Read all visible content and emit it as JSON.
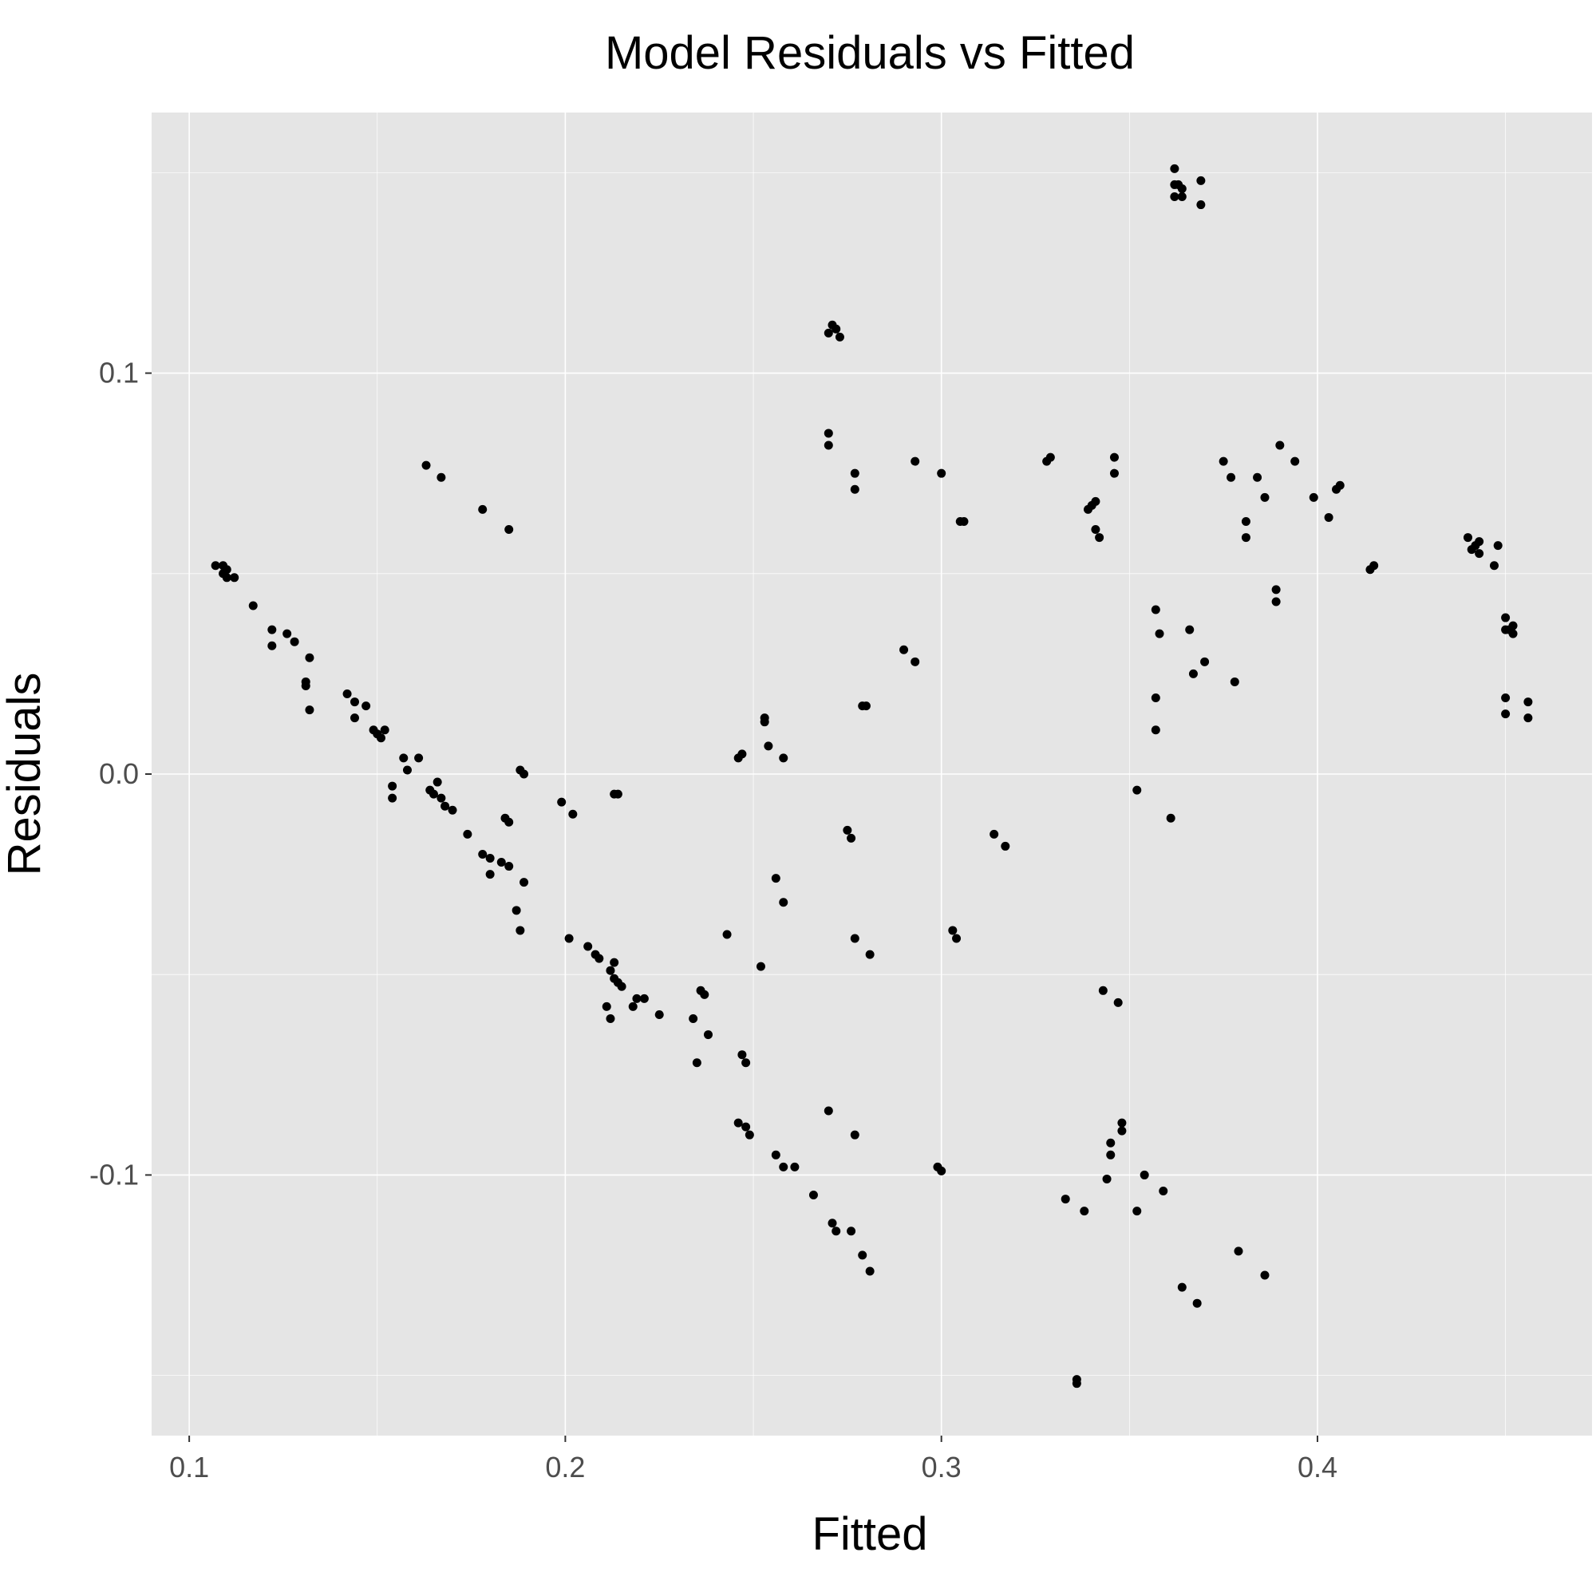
{
  "chart_data": {
    "type": "scatter",
    "title": "Model Residuals vs Fitted",
    "xlabel": "Fitted",
    "ylabel": "Residuals",
    "xlim": [
      0.09,
      0.473
    ],
    "ylim": [
      -0.165,
      0.165
    ],
    "x_ticks": [
      0.1,
      0.2,
      0.3,
      0.4
    ],
    "x_tick_labels": [
      "0.1",
      "0.2",
      "0.3",
      "0.4"
    ],
    "y_ticks": [
      -0.1,
      0.0,
      0.1
    ],
    "y_tick_labels": [
      "-0.1",
      "0.0",
      "0.1"
    ],
    "grid": true,
    "legend": "none",
    "point_color": "#000000",
    "panel_color": "#e5e5e5",
    "points": [
      [
        0.107,
        0.052
      ],
      [
        0.109,
        0.052
      ],
      [
        0.11,
        0.051
      ],
      [
        0.109,
        0.05
      ],
      [
        0.11,
        0.049
      ],
      [
        0.112,
        0.049
      ],
      [
        0.117,
        0.042
      ],
      [
        0.122,
        0.036
      ],
      [
        0.122,
        0.032
      ],
      [
        0.126,
        0.035
      ],
      [
        0.128,
        0.033
      ],
      [
        0.132,
        0.029
      ],
      [
        0.131,
        0.023
      ],
      [
        0.131,
        0.022
      ],
      [
        0.132,
        0.016
      ],
      [
        0.142,
        0.02
      ],
      [
        0.144,
        0.018
      ],
      [
        0.144,
        0.014
      ],
      [
        0.147,
        0.017
      ],
      [
        0.149,
        0.011
      ],
      [
        0.15,
        0.01
      ],
      [
        0.151,
        0.009
      ],
      [
        0.152,
        0.011
      ],
      [
        0.154,
        -0.003
      ],
      [
        0.154,
        -0.006
      ],
      [
        0.157,
        0.004
      ],
      [
        0.158,
        0.001
      ],
      [
        0.161,
        0.004
      ],
      [
        0.164,
        -0.004
      ],
      [
        0.165,
        -0.005
      ],
      [
        0.166,
        -0.002
      ],
      [
        0.167,
        -0.006
      ],
      [
        0.168,
        -0.008
      ],
      [
        0.17,
        -0.009
      ],
      [
        0.174,
        -0.015
      ],
      [
        0.178,
        -0.02
      ],
      [
        0.18,
        -0.021
      ],
      [
        0.18,
        -0.025
      ],
      [
        0.183,
        -0.022
      ],
      [
        0.185,
        -0.023
      ],
      [
        0.187,
        -0.034
      ],
      [
        0.188,
        -0.039
      ],
      [
        0.189,
        -0.027
      ],
      [
        0.188,
        0.001
      ],
      [
        0.189,
        0.0
      ],
      [
        0.184,
        -0.011
      ],
      [
        0.185,
        -0.012
      ],
      [
        0.163,
        0.077
      ],
      [
        0.167,
        0.074
      ],
      [
        0.178,
        0.066
      ],
      [
        0.185,
        0.061
      ],
      [
        0.199,
        -0.007
      ],
      [
        0.202,
        -0.01
      ],
      [
        0.201,
        -0.041
      ],
      [
        0.206,
        -0.043
      ],
      [
        0.208,
        -0.045
      ],
      [
        0.209,
        -0.046
      ],
      [
        0.212,
        -0.049
      ],
      [
        0.213,
        -0.051
      ],
      [
        0.214,
        -0.052
      ],
      [
        0.215,
        -0.053
      ],
      [
        0.213,
        -0.047
      ],
      [
        0.211,
        -0.058
      ],
      [
        0.212,
        -0.061
      ],
      [
        0.218,
        -0.058
      ],
      [
        0.219,
        -0.056
      ],
      [
        0.221,
        -0.056
      ],
      [
        0.225,
        -0.06
      ],
      [
        0.213,
        -0.005
      ],
      [
        0.214,
        -0.005
      ],
      [
        0.234,
        -0.061
      ],
      [
        0.236,
        -0.054
      ],
      [
        0.237,
        -0.055
      ],
      [
        0.238,
        -0.065
      ],
      [
        0.235,
        -0.072
      ],
      [
        0.243,
        -0.04
      ],
      [
        0.247,
        -0.07
      ],
      [
        0.248,
        -0.072
      ],
      [
        0.246,
        -0.087
      ],
      [
        0.248,
        -0.088
      ],
      [
        0.249,
        -0.09
      ],
      [
        0.246,
        0.004
      ],
      [
        0.247,
        0.005
      ],
      [
        0.252,
        -0.048
      ],
      [
        0.253,
        0.014
      ],
      [
        0.253,
        0.013
      ],
      [
        0.254,
        0.007
      ],
      [
        0.258,
        0.004
      ],
      [
        0.256,
        -0.026
      ],
      [
        0.258,
        -0.032
      ],
      [
        0.256,
        -0.095
      ],
      [
        0.258,
        -0.098
      ],
      [
        0.261,
        -0.098
      ],
      [
        0.266,
        -0.105
      ],
      [
        0.27,
        0.11
      ],
      [
        0.271,
        0.112
      ],
      [
        0.272,
        0.111
      ],
      [
        0.273,
        0.109
      ],
      [
        0.27,
        0.085
      ],
      [
        0.27,
        0.082
      ],
      [
        0.271,
        -0.112
      ],
      [
        0.272,
        -0.114
      ],
      [
        0.276,
        -0.114
      ],
      [
        0.275,
        -0.014
      ],
      [
        0.276,
        -0.016
      ],
      [
        0.277,
        0.075
      ],
      [
        0.277,
        0.071
      ],
      [
        0.277,
        -0.041
      ],
      [
        0.281,
        -0.045
      ],
      [
        0.277,
        -0.09
      ],
      [
        0.279,
        -0.12
      ],
      [
        0.281,
        -0.124
      ],
      [
        0.279,
        0.017
      ],
      [
        0.28,
        0.017
      ],
      [
        0.27,
        -0.084
      ],
      [
        0.29,
        0.031
      ],
      [
        0.293,
        0.028
      ],
      [
        0.293,
        0.078
      ],
      [
        0.3,
        0.075
      ],
      [
        0.305,
        0.063
      ],
      [
        0.306,
        0.063
      ],
      [
        0.299,
        -0.098
      ],
      [
        0.3,
        -0.099
      ],
      [
        0.303,
        -0.039
      ],
      [
        0.304,
        -0.041
      ],
      [
        0.314,
        -0.015
      ],
      [
        0.317,
        -0.018
      ],
      [
        0.328,
        0.078
      ],
      [
        0.329,
        0.079
      ],
      [
        0.333,
        -0.106
      ],
      [
        0.336,
        -0.151
      ],
      [
        0.336,
        -0.152
      ],
      [
        0.338,
        -0.109
      ],
      [
        0.339,
        0.066
      ],
      [
        0.34,
        0.067
      ],
      [
        0.341,
        0.068
      ],
      [
        0.341,
        0.061
      ],
      [
        0.342,
        0.059
      ],
      [
        0.343,
        -0.054
      ],
      [
        0.344,
        -0.101
      ],
      [
        0.345,
        -0.092
      ],
      [
        0.345,
        -0.095
      ],
      [
        0.346,
        0.079
      ],
      [
        0.346,
        0.075
      ],
      [
        0.347,
        -0.057
      ],
      [
        0.348,
        -0.087
      ],
      [
        0.348,
        -0.089
      ],
      [
        0.352,
        -0.004
      ],
      [
        0.352,
        -0.109
      ],
      [
        0.354,
        -0.1
      ],
      [
        0.357,
        0.019
      ],
      [
        0.357,
        0.011
      ],
      [
        0.357,
        0.041
      ],
      [
        0.358,
        0.035
      ],
      [
        0.359,
        -0.104
      ],
      [
        0.361,
        -0.011
      ],
      [
        0.362,
        0.147
      ],
      [
        0.362,
        0.144
      ],
      [
        0.363,
        0.147
      ],
      [
        0.364,
        0.146
      ],
      [
        0.364,
        0.144
      ],
      [
        0.362,
        0.151
      ],
      [
        0.369,
        0.148
      ],
      [
        0.369,
        0.142
      ],
      [
        0.364,
        -0.128
      ],
      [
        0.366,
        0.036
      ],
      [
        0.367,
        0.025
      ],
      [
        0.368,
        -0.132
      ],
      [
        0.37,
        0.028
      ],
      [
        0.375,
        0.078
      ],
      [
        0.377,
        0.074
      ],
      [
        0.378,
        0.023
      ],
      [
        0.379,
        -0.119
      ],
      [
        0.381,
        0.063
      ],
      [
        0.381,
        0.059
      ],
      [
        0.384,
        0.074
      ],
      [
        0.386,
        0.069
      ],
      [
        0.386,
        -0.125
      ],
      [
        0.389,
        0.046
      ],
      [
        0.389,
        0.043
      ],
      [
        0.39,
        0.082
      ],
      [
        0.394,
        0.078
      ],
      [
        0.399,
        0.069
      ],
      [
        0.403,
        0.064
      ],
      [
        0.405,
        0.071
      ],
      [
        0.406,
        0.072
      ],
      [
        0.414,
        0.051
      ],
      [
        0.415,
        0.052
      ],
      [
        0.44,
        0.059
      ],
      [
        0.441,
        0.056
      ],
      [
        0.442,
        0.057
      ],
      [
        0.443,
        0.058
      ],
      [
        0.443,
        0.055
      ],
      [
        0.447,
        0.052
      ],
      [
        0.448,
        0.057
      ],
      [
        0.45,
        0.039
      ],
      [
        0.45,
        0.036
      ],
      [
        0.451,
        0.036
      ],
      [
        0.452,
        0.037
      ],
      [
        0.452,
        0.035
      ],
      [
        0.45,
        0.019
      ],
      [
        0.45,
        0.015
      ],
      [
        0.456,
        0.018
      ],
      [
        0.456,
        0.014
      ]
    ]
  }
}
